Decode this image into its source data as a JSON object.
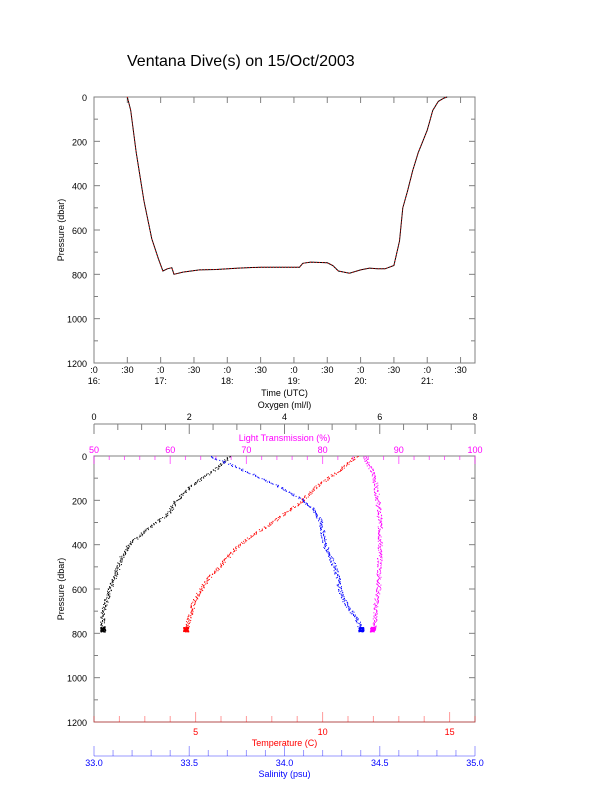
{
  "title": "Ventana Dive(s) on 15/Oct/2003",
  "colors": {
    "axis": "#808080",
    "black": "#000000",
    "red": "#ff0000",
    "blue": "#0000ff",
    "magenta": "#ff00ff"
  },
  "chart_data": [
    {
      "type": "line",
      "title": "Ventana Dive(s) on 15/Oct/2003",
      "xlabel": "Time (UTC)",
      "ylabel": "Pressure (dbar)",
      "x_units": "minutes after 16:00 UTC",
      "xlim": [
        0,
        343
      ],
      "ylim": [
        1200,
        0
      ],
      "yticks": [
        "0",
        "200",
        "400",
        "600",
        "800",
        "1000",
        "1200"
      ],
      "xtick_labels": [
        [
          ":0",
          "16:"
        ],
        [
          ":30",
          ""
        ],
        [
          ":0",
          "17:"
        ],
        [
          ":30",
          ""
        ],
        [
          ":0",
          "18:"
        ],
        [
          ":30",
          ""
        ],
        [
          ":0",
          "19:"
        ],
        [
          ":30",
          ""
        ],
        [
          ":0",
          "20:"
        ],
        [
          ":30",
          ""
        ],
        [
          ":0",
          "21:"
        ],
        [
          ":30",
          ""
        ]
      ],
      "series": [
        {
          "name": "Pressure",
          "color": "#ff0000",
          "x": [
            30,
            33,
            38,
            45,
            52,
            58,
            62,
            66,
            70,
            72,
            80,
            95,
            110,
            130,
            150,
            170,
            185,
            188,
            195,
            210,
            215,
            220,
            225,
            230,
            240,
            248,
            255,
            262,
            270,
            275,
            278,
            282,
            287,
            292,
            300,
            305,
            310,
            315,
            318
          ],
          "y": [
            0,
            60,
            250,
            470,
            640,
            730,
            785,
            775,
            770,
            800,
            790,
            780,
            778,
            772,
            768,
            768,
            768,
            750,
            745,
            748,
            760,
            785,
            790,
            795,
            780,
            772,
            775,
            775,
            760,
            650,
            500,
            430,
            330,
            250,
            150,
            60,
            20,
            5,
            0
          ]
        }
      ]
    },
    {
      "type": "scatter",
      "ylabel": "Pressure (dbar)",
      "ylim": [
        1200,
        0
      ],
      "yticks": [
        "0",
        "200",
        "400",
        "600",
        "800",
        "1000",
        "1200"
      ],
      "axes": [
        {
          "name": "Oxygen (ml/l)",
          "position": "top-outer",
          "range": [
            0,
            8
          ],
          "ticks": [
            "0",
            "2",
            "4",
            "6",
            "8"
          ],
          "color": "#000000"
        },
        {
          "name": "Light Transmission (%)",
          "position": "top",
          "range": [
            50,
            100
          ],
          "ticks": [
            "50",
            "60",
            "70",
            "80",
            "90",
            "100"
          ],
          "color": "#ff00ff"
        },
        {
          "name": "Temperature (C)",
          "position": "bottom",
          "range": [
            1,
            16
          ],
          "ticks": [
            "5",
            "10",
            "15"
          ],
          "color": "#ff0000"
        },
        {
          "name": "Salinity (psu)",
          "position": "bottom-outer",
          "range": [
            33.0,
            35.0
          ],
          "ticks": [
            "33.0",
            "33.5",
            "34.0",
            "34.5",
            "35.0"
          ],
          "color": "#0000ff"
        }
      ],
      "series": [
        {
          "name": "Oxygen",
          "axis": 0,
          "color": "#000000",
          "pressure": [
            0,
            50,
            100,
            150,
            200,
            260,
            300,
            350,
            400,
            450,
            500,
            550,
            600,
            650,
            700,
            750,
            790
          ],
          "values": [
            2.85,
            2.6,
            2.25,
            1.95,
            1.72,
            1.55,
            1.3,
            1.0,
            0.72,
            0.58,
            0.5,
            0.42,
            0.33,
            0.25,
            0.18,
            0.17,
            0.18
          ]
        },
        {
          "name": "Light Transmission",
          "axis": 1,
          "color": "#ff00ff",
          "pressure": [
            0,
            50,
            100,
            200,
            300,
            400,
            500,
            600,
            650,
            700,
            750,
            780,
            790
          ],
          "values": [
            85.5,
            86.2,
            86.8,
            87.2,
            87.5,
            87.5,
            87.4,
            87.3,
            87.0,
            86.9,
            86.8,
            86.6,
            86.5
          ]
        },
        {
          "name": "Temperature",
          "axis": 2,
          "color": "#ff0000",
          "pressure": [
            0,
            50,
            100,
            150,
            200,
            250,
            300,
            350,
            400,
            450,
            500,
            550,
            600,
            650,
            700,
            750,
            790
          ],
          "values": [
            11.3,
            10.8,
            10.2,
            9.6,
            9.2,
            8.6,
            8.0,
            7.3,
            6.7,
            6.3,
            5.9,
            5.5,
            5.2,
            4.95,
            4.8,
            4.7,
            4.6
          ]
        },
        {
          "name": "Salinity",
          "axis": 3,
          "color": "#0000ff",
          "pressure": [
            0,
            50,
            100,
            150,
            200,
            250,
            300,
            350,
            400,
            450,
            500,
            550,
            600,
            650,
            700,
            750,
            790
          ],
          "values": [
            33.61,
            33.75,
            33.88,
            34.0,
            34.1,
            34.16,
            34.19,
            34.2,
            34.21,
            34.24,
            34.26,
            34.28,
            34.29,
            34.31,
            34.35,
            34.39,
            34.4
          ]
        }
      ]
    }
  ]
}
